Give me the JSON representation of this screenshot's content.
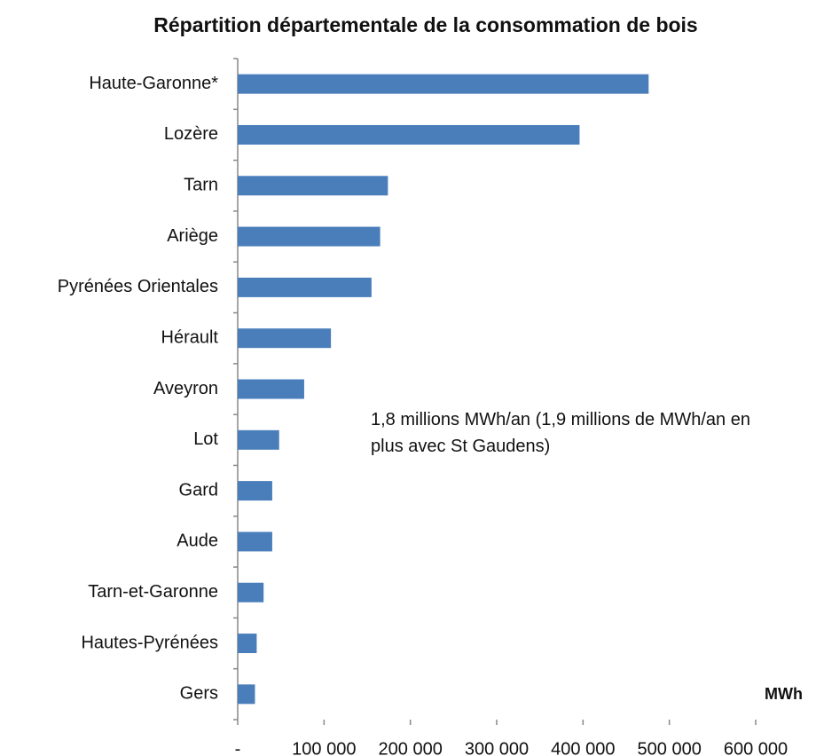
{
  "chart_data": {
    "type": "hbar",
    "title": "Répartition départementale de la consommation de bois",
    "annotation": "1,8 millions MWh/an (1,9 millions de MWh/an en plus avec St Gaudens)",
    "x_label": "MWh",
    "categories": [
      "Haute-Garonne*",
      "Lozère",
      "Tarn",
      "Ariège",
      "Pyrénées Orientales",
      "Hérault",
      "Aveyron",
      "Lot",
      "Gard",
      "Aude",
      "Tarn-et-Garonne",
      "Hautes-Pyrénées",
      "Gers"
    ],
    "values": [
      476000,
      396000,
      174000,
      165000,
      155000,
      108000,
      77000,
      48000,
      40000,
      40000,
      30000,
      22000,
      20000
    ],
    "color": "#4a7ebb",
    "xlim": [
      0,
      600000
    ],
    "xticks": [
      {
        "value": 0,
        "label": "-"
      },
      {
        "value": 100000,
        "label": "100 000"
      },
      {
        "value": 200000,
        "label": "200 000"
      },
      {
        "value": 300000,
        "label": "300 000"
      },
      {
        "value": 400000,
        "label": "400 000"
      },
      {
        "value": 500000,
        "label": "500 000"
      },
      {
        "value": 600000,
        "label": "600 000"
      }
    ]
  }
}
